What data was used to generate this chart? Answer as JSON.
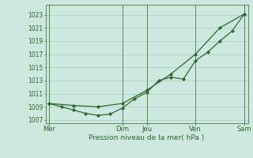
{
  "title": "",
  "xlabel": "Pression niveau de la mer( hPa )",
  "ylabel": "",
  "background_color": "#cde8df",
  "grid_color": "#a8cfc4",
  "line_color": "#2d6a2d",
  "marker_color": "#2d6a2d",
  "ylim": [
    1006.5,
    1024.5
  ],
  "yticks": [
    1007,
    1009,
    1011,
    1013,
    1015,
    1017,
    1019,
    1021,
    1023
  ],
  "x_day_labels": [
    "Mer",
    "Dim",
    "Jeu",
    "Ven",
    "Sam"
  ],
  "x_day_positions": [
    0,
    3.0,
    4.0,
    6.0,
    8.0
  ],
  "series1_x": [
    0,
    0.5,
    1.0,
    1.5,
    2.0,
    2.5,
    3.0,
    3.5,
    4.0,
    4.5,
    5.0,
    5.5,
    6.0,
    6.5,
    7.0,
    7.5,
    8.0
  ],
  "series1_y": [
    1009.5,
    1009.0,
    1008.5,
    1008.0,
    1007.7,
    1007.9,
    1008.8,
    1010.2,
    1011.2,
    1013.0,
    1013.5,
    1013.2,
    1016.0,
    1017.3,
    1019.0,
    1020.5,
    1023.1
  ],
  "series2_x": [
    0,
    1.0,
    2.0,
    3.0,
    4.0,
    5.0,
    6.0,
    7.0,
    8.0
  ],
  "series2_y": [
    1009.5,
    1009.2,
    1009.0,
    1009.5,
    1011.5,
    1014.0,
    1017.0,
    1021.0,
    1023.1
  ],
  "xlim": [
    -0.15,
    8.15
  ]
}
